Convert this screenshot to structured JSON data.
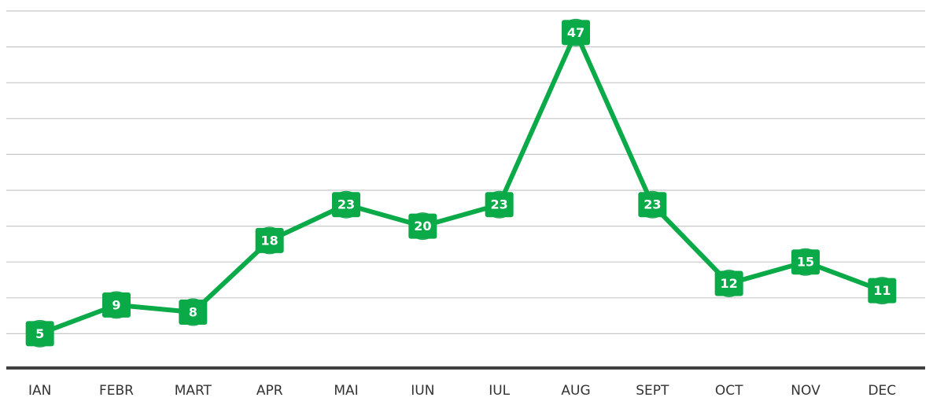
{
  "chart_data": {
    "type": "line",
    "categories": [
      "IAN",
      "FEBR",
      "MART",
      "APR",
      "MAI",
      "IUN",
      "IUL",
      "AUG",
      "SEPT",
      "OCT",
      "NOV",
      "DEC"
    ],
    "series": [
      {
        "color": "#0aaa48",
        "values": [
          5,
          9,
          8,
          18,
          23,
          20,
          23,
          47,
          23,
          12,
          15,
          11
        ]
      }
    ],
    "ylim": [
      0,
      50
    ],
    "yticks": [
      0,
      5,
      10,
      15,
      20,
      25,
      30,
      35,
      40,
      45,
      50
    ],
    "grid": true
  }
}
